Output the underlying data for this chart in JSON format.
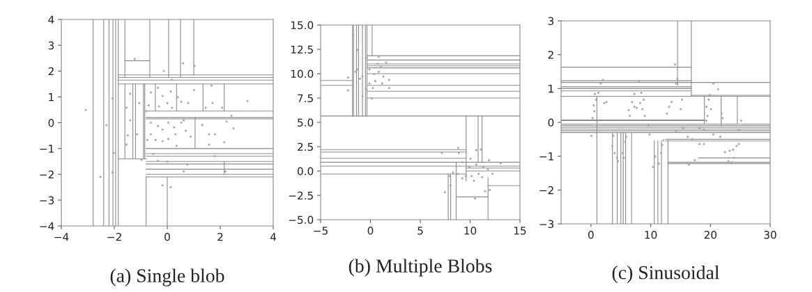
{
  "chart_data": [
    {
      "type": "scatter",
      "title": "(a) Single blob",
      "xlim": [
        -4,
        4
      ],
      "ylim": [
        -4,
        4
      ],
      "xticks": [
        {
          "value": -4,
          "label": "−4"
        },
        {
          "value": -2,
          "label": "−2"
        },
        0,
        2,
        4
      ],
      "yticks": [
        {
          "value": -4,
          "label": "−4"
        },
        {
          "value": -3,
          "label": "−3"
        },
        {
          "value": -2,
          "label": "−2"
        },
        {
          "value": -1,
          "label": "−1"
        },
        0,
        1,
        2,
        3,
        4
      ],
      "grid": false,
      "legend": false,
      "series": [
        {
          "type": "line",
          "color": "#8a8a8a",
          "marker": "none",
          "x": [
            -2.8,
            -2.8
          ],
          "values": [
            -4,
            4
          ]
        },
        {
          "type": "line",
          "color": "#8a8a8a",
          "marker": "none",
          "x": [
            -2.4,
            -2.4
          ],
          "values": [
            -4,
            4
          ]
        },
        {
          "type": "line",
          "color": "#8a8a8a",
          "marker": "none",
          "x": [
            -2.2,
            -2.2
          ],
          "values": [
            -4,
            4
          ]
        },
        {
          "type": "line",
          "color": "#8a8a8a",
          "marker": "none",
          "x": [
            -2.05,
            -2.05
          ],
          "values": [
            -4,
            4
          ]
        },
        {
          "type": "line",
          "color": "#8a8a8a",
          "marker": "none",
          "x": [
            -1.95,
            -1.95
          ],
          "values": [
            -4,
            4
          ]
        },
        {
          "type": "line",
          "color": "#8a8a8a",
          "marker": "none",
          "x": [
            -1.85,
            -1.85
          ],
          "values": [
            -4,
            4
          ]
        },
        {
          "type": "line",
          "color": "#8a8a8a",
          "marker": "none",
          "x": [
            -0.8,
            -0.8
          ],
          "values": [
            -4,
            -2.1
          ]
        },
        {
          "type": "line",
          "color": "#8a8a8a",
          "marker": "none",
          "x": [
            -0.85,
            -0.85
          ],
          "values": [
            -1.4,
            1.5
          ]
        },
        {
          "type": "line",
          "color": "#8a8a8a",
          "marker": "none",
          "x": [
            -0.9,
            -0.9
          ],
          "values": [
            -1.4,
            1.5
          ]
        },
        {
          "type": "line",
          "color": "#8a8a8a",
          "marker": "none",
          "x": [
            -1.6,
            -1.6
          ],
          "values": [
            1.75,
            4
          ]
        },
        {
          "type": "line",
          "color": "#8a8a8a",
          "marker": "none",
          "x": [
            -0.66,
            -0.66
          ],
          "values": [
            1.75,
            4
          ]
        },
        {
          "type": "line",
          "color": "#8a8a8a",
          "marker": "none",
          "x": [
            0.05,
            0.05
          ],
          "values": [
            1.75,
            4
          ]
        },
        {
          "type": "line",
          "color": "#8a8a8a",
          "marker": "none",
          "x": [
            0.5,
            0.5
          ],
          "values": [
            1.75,
            4
          ]
        },
        {
          "type": "line",
          "color": "#8a8a8a",
          "marker": "none",
          "x": [
            1.0,
            1.0
          ],
          "values": [
            1.85,
            4
          ]
        },
        {
          "type": "line",
          "color": "#8a8a8a",
          "marker": "none",
          "x": [
            -1.6,
            -1.6
          ],
          "values": [
            -1.4,
            1.5
          ]
        },
        {
          "type": "line",
          "color": "#8a8a8a",
          "marker": "none",
          "x": [
            -1.3,
            -1.3
          ],
          "values": [
            -1.4,
            1.5
          ]
        },
        {
          "type": "line",
          "color": "#8a8a8a",
          "marker": "none",
          "x": [
            -1.2,
            -1.2
          ],
          "values": [
            -1.4,
            1.5
          ]
        },
        {
          "type": "line",
          "color": "#8a8a8a",
          "marker": "none",
          "x": [
            -0.45,
            -0.45
          ],
          "values": [
            0.45,
            1.5
          ]
        },
        {
          "type": "line",
          "color": "#8a8a8a",
          "marker": "none",
          "x": [
            0.35,
            0.35
          ],
          "values": [
            0.45,
            1.5
          ]
        },
        {
          "type": "line",
          "color": "#8a8a8a",
          "marker": "none",
          "x": [
            1.35,
            1.35
          ],
          "values": [
            0.45,
            1.5
          ]
        },
        {
          "type": "line",
          "color": "#8a8a8a",
          "marker": "none",
          "x": [
            2.15,
            2.15
          ],
          "values": [
            0.45,
            1.5
          ]
        },
        {
          "type": "line",
          "color": "#8a8a8a",
          "marker": "none",
          "x": [
            1.05,
            1.05
          ],
          "values": [
            -1.0,
            0.2
          ]
        },
        {
          "type": "line",
          "color": "#8a8a8a",
          "marker": "none",
          "x": [
            0,
            0
          ],
          "values": [
            -4,
            -2.1
          ]
        },
        {
          "type": "line",
          "color": "#8a8a8a",
          "marker": "none",
          "x": [
            2.15,
            2.15
          ],
          "values": [
            -2.0,
            -1.5
          ]
        },
        {
          "type": "line",
          "color": "#8a8a8a",
          "marker": "none",
          "x": [
            -1.85,
            4
          ],
          "values": [
            1.85,
            1.85
          ]
        },
        {
          "type": "line",
          "color": "#8a8a8a",
          "marker": "none",
          "x": [
            -1.85,
            4
          ],
          "values": [
            1.75,
            1.75
          ]
        },
        {
          "type": "line",
          "color": "#8a8a8a",
          "marker": "none",
          "x": [
            -1.85,
            4
          ],
          "values": [
            1.65,
            1.65
          ]
        },
        {
          "type": "line",
          "color": "#8a8a8a",
          "marker": "none",
          "x": [
            -1.85,
            4
          ],
          "values": [
            1.5,
            1.5
          ]
        },
        {
          "type": "line",
          "color": "#8a8a8a",
          "marker": "none",
          "x": [
            -1.6,
            -0.66
          ],
          "values": [
            2.4,
            2.4
          ]
        },
        {
          "type": "line",
          "color": "#8a8a8a",
          "marker": "none",
          "x": [
            -0.8,
            4
          ],
          "values": [
            0.45,
            0.45
          ]
        },
        {
          "type": "line",
          "color": "#8a8a8a",
          "marker": "none",
          "x": [
            -0.8,
            4
          ],
          "values": [
            0.2,
            0.2
          ]
        },
        {
          "type": "line",
          "color": "#8a8a8a",
          "marker": "none",
          "x": [
            -0.8,
            4
          ],
          "values": [
            0.15,
            0.15
          ]
        },
        {
          "type": "line",
          "color": "#8a8a8a",
          "marker": "none",
          "x": [
            -0.8,
            4
          ],
          "values": [
            -1.0,
            -1.0
          ]
        },
        {
          "type": "line",
          "color": "#8a8a8a",
          "marker": "none",
          "x": [
            -0.8,
            4
          ],
          "values": [
            -1.2,
            -1.2
          ]
        },
        {
          "type": "line",
          "color": "#8a8a8a",
          "marker": "none",
          "x": [
            -0.8,
            4
          ],
          "values": [
            -1.3,
            -1.3
          ]
        },
        {
          "type": "line",
          "color": "#8a8a8a",
          "marker": "none",
          "x": [
            -0.8,
            4
          ],
          "values": [
            -1.5,
            -1.5
          ]
        },
        {
          "type": "line",
          "color": "#8a8a8a",
          "marker": "none",
          "x": [
            -0.8,
            4
          ],
          "values": [
            -1.6,
            -1.6
          ]
        },
        {
          "type": "line",
          "color": "#8a8a8a",
          "marker": "none",
          "x": [
            -0.8,
            4
          ],
          "values": [
            -1.8,
            -1.8
          ]
        },
        {
          "type": "line",
          "color": "#8a8a8a",
          "marker": "none",
          "x": [
            -0.8,
            4
          ],
          "values": [
            -2.0,
            -2.0
          ]
        },
        {
          "type": "line",
          "color": "#8a8a8a",
          "marker": "none",
          "x": [
            -0.8,
            4
          ],
          "values": [
            -2.1,
            -2.1
          ]
        },
        {
          "type": "line",
          "color": "#8a8a8a",
          "marker": "none",
          "x": [
            -1.85,
            -0.8
          ],
          "values": [
            -1.4,
            -1.4
          ]
        },
        {
          "color": "#a8a8a8",
          "marker": "circle",
          "x": [
            -3.08,
            -1.23,
            0.6,
            1.03,
            3.03,
            -2.52,
            -0.18,
            0.13,
            -2.07,
            -2.29,
            -2.02,
            -2.07,
            -1.4,
            -1.54,
            -1.4,
            -1.49,
            -1.54,
            -1.06,
            -1.14,
            -0.97,
            -0.62,
            -0.35,
            -0.18,
            0.13,
            0.4,
            0.53,
            0.79,
            1.01,
            -0.31,
            0.0,
            0.18,
            -0.62,
            -0.35,
            -0.18,
            0.04,
            0.26,
            0.53,
            0.7,
            0.88,
            -0.44,
            -0.18,
            0.04,
            0.31,
            -0.62,
            0.62,
            1.32,
            1.58,
            1.8,
            1.58,
            2.15,
            2.24,
            2.5,
            2.42,
            1.71,
            1.45,
            2.07,
            1.67,
            0.18,
            -0.13,
            -0.35,
            0.0,
            0.62,
            1.8,
            2.2,
            0.75,
            -0.53,
            0.35,
            -0.79,
            -0.7,
            -0.75
          ],
          "values": [
            0.49,
            2.47,
            2.3,
            2.2,
            0.84,
            -2.1,
            -2.43,
            -2.5,
            0.94,
            -0.1,
            -1.17,
            -1.93,
            1.12,
            0.58,
            0.09,
            -0.49,
            -0.85,
            0.76,
            -0.45,
            -1.44,
            1.17,
            1.35,
            1.03,
            1.21,
            0.99,
            0.81,
            0.76,
            1.26,
            0.63,
            0.76,
            0.58,
            0.0,
            -0.13,
            -0.27,
            0.0,
            -0.18,
            0.0,
            -0.31,
            -0.54,
            -0.67,
            -0.72,
            -0.63,
            -0.45,
            -0.45,
            0.09,
            -0.09,
            -0.45,
            -0.45,
            -0.85,
            -0.76,
            0.04,
            -0.22,
            0.27,
            0.76,
            0.58,
            0.58,
            1.44,
            1.66,
            2.0,
            -1.48,
            -1.51,
            -1.89,
            -1.3,
            -1.89,
            -1.62,
            -1.21,
            -0.9,
            0.45,
            0.67,
            -0.67
          ]
        }
      ]
    },
    {
      "type": "scatter",
      "title": "(b) Multiple Blobs",
      "xlim": [
        -5,
        15
      ],
      "ylim": [
        -5,
        15
      ],
      "xticks": [
        {
          "value": -5,
          "label": "−5"
        },
        0,
        5,
        10,
        15
      ],
      "yticks": [
        {
          "value": -5,
          "label": "−5.0"
        },
        {
          "value": -2.5,
          "label": "−2.5"
        },
        {
          "value": 0,
          "label": "0.0"
        },
        2.5,
        {
          "value": 5,
          "label": "5.0"
        },
        7.5,
        {
          "value": 10,
          "label": "10.0"
        },
        12.5,
        {
          "value": 15,
          "label": "15.0"
        }
      ],
      "grid": false,
      "legend": false,
      "series": [
        {
          "type": "line",
          "color": "#8a8a8a",
          "marker": "none",
          "x": [
            -1.8,
            -1.8
          ],
          "values": [
            5.65,
            15
          ]
        },
        {
          "type": "line",
          "color": "#8a8a8a",
          "marker": "none",
          "x": [
            -1.7,
            -1.7
          ],
          "values": [
            5.65,
            15
          ]
        },
        {
          "type": "line",
          "color": "#8a8a8a",
          "marker": "none",
          "x": [
            -1.4,
            -1.4
          ],
          "values": [
            5.65,
            15
          ]
        },
        {
          "type": "line",
          "color": "#8a8a8a",
          "marker": "none",
          "x": [
            -1.2,
            -1.2
          ],
          "values": [
            5.65,
            15
          ]
        },
        {
          "type": "line",
          "color": "#8a8a8a",
          "marker": "none",
          "x": [
            -0.8,
            -0.8
          ],
          "values": [
            5.65,
            15
          ]
        },
        {
          "type": "line",
          "color": "#8a8a8a",
          "marker": "none",
          "x": [
            -0.5,
            -0.5
          ],
          "values": [
            5.65,
            15
          ]
        },
        {
          "type": "line",
          "color": "#8a8a8a",
          "marker": "none",
          "x": [
            -0.35,
            -0.35
          ],
          "values": [
            5.65,
            15
          ]
        },
        {
          "type": "line",
          "color": "#8a8a8a",
          "marker": "none",
          "x": [
            0.17,
            0.17
          ],
          "values": [
            11.85,
            15
          ]
        },
        {
          "type": "line",
          "color": "#8a8a8a",
          "marker": "none",
          "x": [
            9.6,
            9.6
          ],
          "values": [
            -1,
            5.65
          ]
        },
        {
          "type": "line",
          "color": "#8a8a8a",
          "marker": "none",
          "x": [
            10.8,
            10.8
          ],
          "values": [
            0.9,
            5.65
          ]
        },
        {
          "type": "line",
          "color": "#8a8a8a",
          "marker": "none",
          "x": [
            11.2,
            11.2
          ],
          "values": [
            0.9,
            5.65
          ]
        },
        {
          "type": "line",
          "color": "#8a8a8a",
          "marker": "none",
          "x": [
            7.8,
            7.8
          ],
          "values": [
            -5,
            -0.3
          ]
        },
        {
          "type": "line",
          "color": "#8a8a8a",
          "marker": "none",
          "x": [
            8.05,
            8.05
          ],
          "values": [
            -5,
            -0.3
          ]
        },
        {
          "type": "line",
          "color": "#8a8a8a",
          "marker": "none",
          "x": [
            8.6,
            8.6
          ],
          "values": [
            -5,
            0.9
          ]
        },
        {
          "type": "line",
          "color": "#8a8a8a",
          "marker": "none",
          "x": [
            11.8,
            11.8
          ],
          "values": [
            -5,
            -0.7
          ]
        },
        {
          "type": "line",
          "color": "#8a8a8a",
          "marker": "none",
          "x": [
            -0.35,
            15
          ],
          "values": [
            11.85,
            11.85
          ]
        },
        {
          "type": "line",
          "color": "#8a8a8a",
          "marker": "none",
          "x": [
            -0.35,
            15
          ],
          "values": [
            11.4,
            11.4
          ]
        },
        {
          "type": "line",
          "color": "#8a8a8a",
          "marker": "none",
          "x": [
            -0.35,
            15
          ],
          "values": [
            11.0,
            11.0
          ]
        },
        {
          "type": "line",
          "color": "#8a8a8a",
          "marker": "none",
          "x": [
            -0.35,
            15
          ],
          "values": [
            10.8,
            10.8
          ]
        },
        {
          "type": "line",
          "color": "#8a8a8a",
          "marker": "none",
          "x": [
            -0.35,
            15
          ],
          "values": [
            10.6,
            10.6
          ]
        },
        {
          "type": "line",
          "color": "#8a8a8a",
          "marker": "none",
          "x": [
            -0.35,
            15
          ],
          "values": [
            10.0,
            10.0
          ]
        },
        {
          "type": "line",
          "color": "#8a8a8a",
          "marker": "none",
          "x": [
            -0.35,
            15
          ],
          "values": [
            8.8,
            8.8
          ]
        },
        {
          "type": "line",
          "color": "#8a8a8a",
          "marker": "none",
          "x": [
            -0.35,
            15
          ],
          "values": [
            8.2,
            8.2
          ]
        },
        {
          "type": "line",
          "color": "#8a8a8a",
          "marker": "none",
          "x": [
            -0.35,
            15
          ],
          "values": [
            7.5,
            7.5
          ]
        },
        {
          "type": "line",
          "color": "#8a8a8a",
          "marker": "none",
          "x": [
            -5,
            -1.8
          ],
          "values": [
            9.3,
            9.3
          ]
        },
        {
          "type": "line",
          "color": "#8a8a8a",
          "marker": "none",
          "x": [
            -5,
            -1.8
          ],
          "values": [
            8.8,
            8.8
          ]
        },
        {
          "type": "line",
          "color": "#8a8a8a",
          "marker": "none",
          "x": [
            -5,
            9.6
          ],
          "values": [
            2.2,
            2.2
          ]
        },
        {
          "type": "line",
          "color": "#8a8a8a",
          "marker": "none",
          "x": [
            -5,
            9.6
          ],
          "values": [
            1.95,
            1.95
          ]
        },
        {
          "type": "line",
          "color": "#8a8a8a",
          "marker": "none",
          "x": [
            -5,
            9.6
          ],
          "values": [
            1.3,
            1.3
          ]
        },
        {
          "type": "line",
          "color": "#8a8a8a",
          "marker": "none",
          "x": [
            -5,
            15
          ],
          "values": [
            0.9,
            0.9
          ]
        },
        {
          "type": "line",
          "color": "#8a8a8a",
          "marker": "none",
          "x": [
            -5,
            15
          ],
          "values": [
            0.5,
            0.5
          ]
        },
        {
          "type": "line",
          "color": "#8a8a8a",
          "marker": "none",
          "x": [
            -5,
            9.6
          ],
          "values": [
            -0.3,
            -0.3
          ]
        },
        {
          "type": "line",
          "color": "#8a8a8a",
          "marker": "none",
          "x": [
            11.8,
            15
          ],
          "values": [
            -1.5,
            -1.5
          ]
        },
        {
          "type": "line",
          "color": "#8a8a8a",
          "marker": "none",
          "x": [
            8.6,
            11.8
          ],
          "values": [
            -2.65,
            -2.65
          ]
        },
        {
          "type": "line",
          "color": "#8a8a8a",
          "marker": "none",
          "x": [
            9.6,
            15
          ],
          "values": [
            0.3,
            0.3
          ]
        },
        {
          "type": "line",
          "color": "#8a8a8a",
          "marker": "none",
          "x": [
            9.6,
            15
          ],
          "values": [
            0,
            0
          ]
        },
        {
          "type": "line",
          "color": "#8a8a8a",
          "marker": "none",
          "x": [
            -5,
            15
          ],
          "values": [
            5.65,
            5.65
          ]
        },
        {
          "color": "#a8a8a8",
          "marker": "circle",
          "x": [
            -2.25,
            -2.25,
            -1.7,
            -1.27,
            -0.8,
            0.13,
            0.83,
            1.57,
            1.88,
            1.88,
            -0.34,
            -0.1,
            0.36,
            0.83,
            1.29,
            0.48,
            -0.1,
            -0.8,
            -1.27,
            1.06,
            0.71,
            0.24,
            -0.45,
            1.18,
            -1.04,
            -1.5,
            7.17,
            8.8,
            8.87,
            7.47,
            8.05,
            8.29,
            10.62,
            11.08,
            11.9,
            13.07,
            11.97,
            11.5,
            10.5,
            9.22,
            9.92,
            10.62,
            11.32,
            9.57,
            10.15,
            10.85,
            8.75,
            9.22,
            10.38,
            11.78,
            12.25,
            11.2,
            10.03,
            7.94
          ],
          "values": [
            9.6,
            8.29,
            13.95,
            12.45,
            7.69,
            7.45,
            11.74,
            11.14,
            9.36,
            8.52,
            11.62,
            10.43,
            9.95,
            10.19,
            9.71,
            9.24,
            9.0,
            9.71,
            10.43,
            10.67,
            11.02,
            8.52,
            8.4,
            9.0,
            9.48,
            10.19,
            1.86,
            2.38,
            1.86,
            -2.19,
            -1.48,
            -0.17,
            2.14,
            2.21,
            1.1,
            0.79,
            -1.95,
            -2.07,
            -2.83,
            0.9,
            0.43,
            0.67,
            0.43,
            -0.52,
            -0.52,
            -0.29,
            -0.29,
            -0.76,
            -1.0,
            0.19,
            -0.29,
            -0.64,
            1.26,
            -0.52
          ]
        }
      ]
    },
    {
      "type": "scatter",
      "title": "(c) Sinusoidal",
      "xlim": [
        -5,
        30
      ],
      "ylim": [
        -3,
        3
      ],
      "xticks": [
        0,
        10,
        20,
        30
      ],
      "yticks": [
        {
          "value": -3,
          "label": "−3"
        },
        {
          "value": -2,
          "label": "−2"
        },
        {
          "value": -1,
          "label": "−1"
        },
        0,
        1,
        2,
        3
      ],
      "grid": false,
      "legend": false,
      "series": [
        {
          "type": "line",
          "color": "#8a8a8a",
          "marker": "none",
          "x": [
            -5,
            16.8
          ],
          "values": [
            1.63,
            1.63
          ]
        },
        {
          "type": "line",
          "color": "#8a8a8a",
          "marker": "none",
          "x": [
            -5,
            16.8
          ],
          "values": [
            1.23,
            1.23
          ]
        },
        {
          "type": "line",
          "color": "#8a8a8a",
          "marker": "none",
          "x": [
            -5,
            30
          ],
          "values": [
            1.18,
            1.18
          ]
        },
        {
          "type": "line",
          "color": "#8a8a8a",
          "marker": "none",
          "x": [
            -5,
            16.8
          ],
          "values": [
            1.05,
            1.05
          ]
        },
        {
          "type": "line",
          "color": "#8a8a8a",
          "marker": "none",
          "x": [
            -5,
            16.8
          ],
          "values": [
            1.0,
            1.0
          ]
        },
        {
          "type": "line",
          "color": "#8a8a8a",
          "marker": "none",
          "x": [
            -5,
            16.8
          ],
          "values": [
            0.93,
            0.93
          ]
        },
        {
          "type": "line",
          "color": "#8a8a8a",
          "marker": "none",
          "x": [
            -5,
            30
          ],
          "values": [
            0.77,
            0.77
          ]
        },
        {
          "type": "line",
          "color": "#8a8a8a",
          "marker": "none",
          "x": [
            16.8,
            30
          ],
          "values": [
            0.8,
            0.8
          ]
        },
        {
          "type": "line",
          "color": "#8a8a8a",
          "marker": "none",
          "x": [
            -5,
            19
          ],
          "values": [
            0.07,
            0.07
          ]
        },
        {
          "type": "line",
          "color": "#8a8a8a",
          "marker": "none",
          "x": [
            -5,
            19
          ],
          "values": [
            0.05,
            0.05
          ]
        },
        {
          "type": "line",
          "color": "#8a8a8a",
          "marker": "none",
          "x": [
            -5,
            30
          ],
          "values": [
            -0.05,
            -0.05
          ]
        },
        {
          "type": "line",
          "color": "#8a8a8a",
          "marker": "none",
          "x": [
            -5,
            30
          ],
          "values": [
            -0.1,
            -0.1
          ]
        },
        {
          "type": "line",
          "color": "#8a8a8a",
          "marker": "none",
          "x": [
            -5,
            30
          ],
          "values": [
            -0.15,
            -0.15
          ]
        },
        {
          "type": "line",
          "color": "#8a8a8a",
          "marker": "none",
          "x": [
            -5,
            30
          ],
          "values": [
            -0.2,
            -0.2
          ]
        },
        {
          "type": "line",
          "color": "#8a8a8a",
          "marker": "none",
          "x": [
            -5,
            30
          ],
          "values": [
            -0.25,
            -0.25
          ]
        },
        {
          "type": "line",
          "color": "#8a8a8a",
          "marker": "none",
          "x": [
            -5,
            30
          ],
          "values": [
            -0.3,
            -0.3
          ]
        },
        {
          "type": "line",
          "color": "#8a8a8a",
          "marker": "none",
          "x": [
            12.9,
            30
          ],
          "values": [
            -1.22,
            -1.22
          ]
        },
        {
          "type": "line",
          "color": "#8a8a8a",
          "marker": "none",
          "x": [
            12.9,
            30
          ],
          "values": [
            -1.18,
            -1.18
          ]
        },
        {
          "type": "line",
          "color": "#8a8a8a",
          "marker": "none",
          "x": [
            18,
            30
          ],
          "values": [
            -1.05,
            -1.05
          ]
        },
        {
          "type": "line",
          "color": "#8a8a8a",
          "marker": "none",
          "x": [
            12.5,
            30
          ],
          "values": [
            -0.5,
            -0.5
          ]
        },
        {
          "type": "line",
          "color": "#8a8a8a",
          "marker": "none",
          "x": [
            12.5,
            30
          ],
          "values": [
            -0.55,
            -0.55
          ]
        },
        {
          "type": "line",
          "color": "#8a8a8a",
          "marker": "none",
          "x": [
            16.8,
            16.8
          ],
          "values": [
            0.77,
            3
          ]
        },
        {
          "type": "line",
          "color": "#8a8a8a",
          "marker": "none",
          "x": [
            14.5,
            14.5
          ],
          "values": [
            1.1,
            3
          ]
        },
        {
          "type": "line",
          "color": "#8a8a8a",
          "marker": "none",
          "x": [
            1.0,
            1.0
          ],
          "values": [
            -3,
            0.77
          ]
        },
        {
          "type": "line",
          "color": "#8a8a8a",
          "marker": "none",
          "x": [
            3.6,
            3.6
          ],
          "values": [
            -3,
            -0.3
          ]
        },
        {
          "type": "line",
          "color": "#8a8a8a",
          "marker": "none",
          "x": [
            4.4,
            4.4
          ],
          "values": [
            -3,
            -0.3
          ]
        },
        {
          "type": "line",
          "color": "#8a8a8a",
          "marker": "none",
          "x": [
            5.0,
            5.0
          ],
          "values": [
            -3,
            -0.3
          ]
        },
        {
          "type": "line",
          "color": "#8a8a8a",
          "marker": "none",
          "x": [
            5.4,
            5.4
          ],
          "values": [
            -3,
            -0.3
          ]
        },
        {
          "type": "line",
          "color": "#8a8a8a",
          "marker": "none",
          "x": [
            5.8,
            5.8
          ],
          "values": [
            -3,
            -0.3
          ]
        },
        {
          "type": "line",
          "color": "#8a8a8a",
          "marker": "none",
          "x": [
            6.8,
            6.8
          ],
          "values": [
            -3,
            -0.3
          ]
        },
        {
          "type": "line",
          "color": "#8a8a8a",
          "marker": "none",
          "x": [
            10.6,
            10.6
          ],
          "values": [
            -3,
            -0.55
          ]
        },
        {
          "type": "line",
          "color": "#8a8a8a",
          "marker": "none",
          "x": [
            11.2,
            11.2
          ],
          "values": [
            -3,
            -0.55
          ]
        },
        {
          "type": "line",
          "color": "#8a8a8a",
          "marker": "none",
          "x": [
            11.8,
            11.8
          ],
          "values": [
            -3,
            -0.55
          ]
        },
        {
          "type": "line",
          "color": "#8a8a8a",
          "marker": "none",
          "x": [
            12.9,
            12.9
          ],
          "values": [
            -3,
            -0.55
          ]
        },
        {
          "type": "line",
          "color": "#8a8a8a",
          "marker": "none",
          "x": [
            19.0,
            19.0
          ],
          "values": [
            -0.05,
            0.77
          ]
        },
        {
          "type": "line",
          "color": "#8a8a8a",
          "marker": "none",
          "x": [
            21.8,
            21.8
          ],
          "values": [
            -0.1,
            0.77
          ]
        },
        {
          "type": "line",
          "color": "#8a8a8a",
          "marker": "none",
          "x": [
            24.5,
            24.5
          ],
          "values": [
            -0.05,
            0.77
          ]
        },
        {
          "color": "#a8a8a8",
          "marker": "circle",
          "x": [
            0.08,
            0.27,
            0.47,
            0.66,
            0.58,
            2.02,
            1.63,
            2.22,
            2.6,
            1.24,
            0.86,
            6.3,
            6.5,
            6.88,
            7.27,
            7.65,
            8.24,
            8.62,
            8.82,
            8.43,
            9.02,
            7.27,
            8.04,
            12.71,
            13.1,
            13.49,
            14.26,
            14.46,
            14.07,
            15.04,
            15.24,
            19.32,
            19.52,
            19.71,
            19.9,
            20.1,
            19.32,
            20.49,
            21.27,
            21.85,
            22.04,
            25.15,
            3.58,
            3.97,
            4.35,
            4.55,
            5.32,
            5.5,
            5.9,
            5.71,
            3.77,
            9.6,
            9.8,
            10.38,
            10.77,
            11.35,
            11.74,
            11.93,
            12.13,
            14.26,
            15.43,
            16.2,
            16.4,
            16.98,
            17.37,
            18.15,
            18.92,
            20.49,
            21.65,
            22.43,
            23.21,
            23.79,
            24.37,
            24.75,
            23.0,
            23.59,
            23.98,
            24.75,
            18.15,
            18.92
          ],
          "values": [
            -0.4,
            0.12,
            0.5,
            0.84,
            0.33,
            1.25,
            1.15,
            0.57,
            0.6,
            0.87,
            0.67,
            0.36,
            0.19,
            0.6,
            0.46,
            0.43,
            0.57,
            0.39,
            0.67,
            0.87,
            0.19,
            0.84,
            1.22,
            0.26,
            0.46,
            0.6,
            1.15,
            1.29,
            1.71,
            0.39,
            0.67,
            0.46,
            0.19,
            0.67,
            0.81,
            0.39,
            0.05,
            1.15,
            0.98,
            0.26,
            0.12,
            0.05,
            -0.7,
            -0.91,
            -1.05,
            -1.15,
            -0.91,
            -1.05,
            -0.43,
            -0.57,
            -0.4,
            -0.09,
            -0.36,
            -1.32,
            -1.01,
            -1.22,
            -0.91,
            -0.67,
            -0.53,
            -0.26,
            -0.16,
            -0.43,
            -1.25,
            -0.5,
            -1.12,
            -0.64,
            -0.64,
            -0.36,
            -0.43,
            -0.88,
            -0.84,
            -0.81,
            -0.7,
            -0.64,
            -1.15,
            -1.18,
            -1.05,
            -0.22,
            -0.16,
            -0.22
          ]
        }
      ]
    }
  ]
}
